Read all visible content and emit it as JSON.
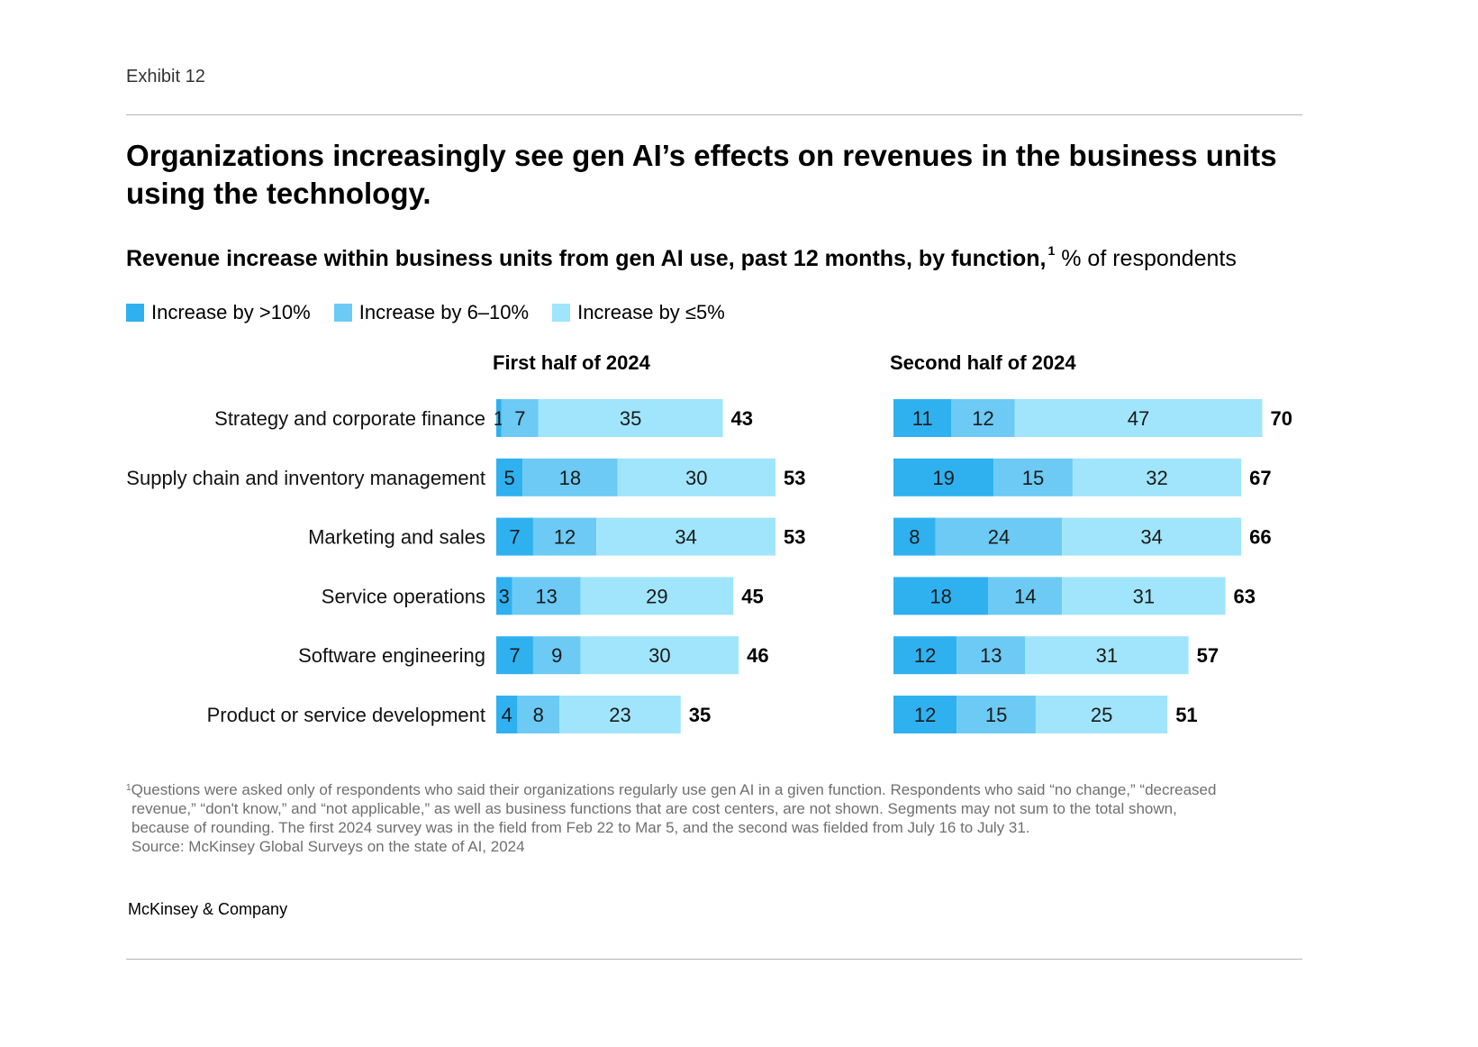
{
  "header": {
    "exhibit": "Exhibit 12"
  },
  "title": "Organizations increasingly see gen AI’s effects on revenues in the business units using the technology.",
  "subtitle": {
    "bold": "Revenue increase within business units from gen AI use, past 12 months, by function,",
    "marker": "1",
    "regular": "% of respondents"
  },
  "legend": [
    {
      "label": "Increase by >10%",
      "color": "#2fb1f0"
    },
    {
      "label": "Increase by 6–10%",
      "color": "#6ccaf4"
    },
    {
      "label": "Increase by ≤5%",
      "color": "#a0e5fb"
    }
  ],
  "chart_data": {
    "type": "bar",
    "orientation": "horizontal-stacked",
    "categories": [
      "Strategy and corporate finance",
      "Supply chain and inventory management",
      "Marketing and sales",
      "Service operations",
      "Software engineering",
      "Product or service development"
    ],
    "panels": [
      {
        "title": "First half of 2024",
        "series": [
          {
            "name": "Increase by >10%",
            "values": [
              1,
              5,
              7,
              3,
              7,
              4
            ]
          },
          {
            "name": "Increase by 6–10%",
            "values": [
              7,
              18,
              12,
              13,
              9,
              8
            ]
          },
          {
            "name": "Increase by ≤5%",
            "values": [
              35,
              30,
              34,
              29,
              30,
              23
            ]
          }
        ],
        "totals": [
          43,
          53,
          53,
          45,
          46,
          35
        ]
      },
      {
        "title": "Second half of 2024",
        "series": [
          {
            "name": "Increase by >10%",
            "values": [
              11,
              19,
              8,
              18,
              12,
              12
            ]
          },
          {
            "name": "Increase by 6–10%",
            "values": [
              12,
              15,
              24,
              14,
              13,
              15
            ]
          },
          {
            "name": "Increase by ≤5%",
            "values": [
              47,
              32,
              34,
              31,
              31,
              25
            ]
          }
        ],
        "totals": [
          70,
          67,
          66,
          63,
          57,
          51
        ]
      }
    ],
    "legend_position": "top-left",
    "grid": false
  },
  "footnote": {
    "marker": "1",
    "lines": [
      "Questions were asked only of respondents who said their organizations regularly use gen AI in a given function. Respondents who said “no change,” “decreased",
      "revenue,” “don't know,” and “not applicable,” as well as business functions that are cost centers, are not shown. Segments may not sum to the total shown,",
      "because of rounding. The first 2024 survey was in the field from Feb 22 to Mar 5, and the second was fielded from July 16 to July 31.",
      "Source: McKinsey Global Surveys on the state of AI, 2024"
    ]
  },
  "brand": "McKinsey & Company"
}
